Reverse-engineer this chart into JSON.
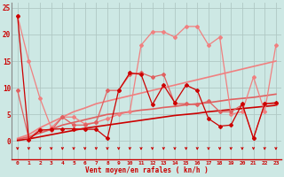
{
  "xlabel": "Vent moyen/en rafales ( kn/h )",
  "background_color": "#cde8e4",
  "grid_color": "#b0c8c4",
  "x": [
    0,
    1,
    2,
    3,
    4,
    5,
    6,
    7,
    8,
    9,
    10,
    11,
    12,
    13,
    14,
    15,
    16,
    17,
    18,
    19,
    20,
    21,
    22,
    23
  ],
  "lines": [
    {
      "name": "light_pink_jagged",
      "y": [
        23.5,
        15.0,
        8.0,
        2.5,
        4.5,
        4.5,
        3.2,
        3.5,
        4.2,
        5.0,
        5.5,
        18.0,
        20.5,
        20.5,
        19.5,
        21.5,
        21.5,
        18.0,
        19.5,
        5.0,
        5.5,
        12.0,
        5.5,
        18.0
      ],
      "color": "#f08080",
      "lw": 0.9,
      "marker": "D",
      "ms": 2.0,
      "zorder": 3
    },
    {
      "name": "mid_pink_jagged",
      "y": [
        9.5,
        0.5,
        2.2,
        2.0,
        4.5,
        3.0,
        3.0,
        3.5,
        9.5,
        9.5,
        12.5,
        12.8,
        12.0,
        12.5,
        7.0,
        7.0,
        6.8,
        7.5,
        5.5,
        5.5,
        6.8,
        0.5,
        7.0,
        7.0
      ],
      "color": "#e06060",
      "lw": 0.9,
      "marker": "D",
      "ms": 2.0,
      "zorder": 4
    },
    {
      "name": "dark_red_jagged",
      "y": [
        23.5,
        0.3,
        2.0,
        2.2,
        2.3,
        2.3,
        2.2,
        2.2,
        0.5,
        9.5,
        12.8,
        12.5,
        6.8,
        10.5,
        7.2,
        10.5,
        9.5,
        4.2,
        2.8,
        3.0,
        7.0,
        0.5,
        7.0,
        7.2
      ],
      "color": "#cc0000",
      "lw": 0.9,
      "marker": "D",
      "ms": 2.0,
      "zorder": 5
    },
    {
      "name": "trend_light_pink",
      "y": [
        0.5,
        1.2,
        2.5,
        3.5,
        4.5,
        5.5,
        6.2,
        7.0,
        7.5,
        8.0,
        8.5,
        9.0,
        9.5,
        10.0,
        10.5,
        11.0,
        11.5,
        12.0,
        12.5,
        13.0,
        13.5,
        14.0,
        14.5,
        15.0
      ],
      "color": "#f08080",
      "lw": 1.2,
      "marker": null,
      "ms": 0,
      "zorder": 2
    },
    {
      "name": "trend_mid_pink",
      "y": [
        0.3,
        0.8,
        1.5,
        2.2,
        3.0,
        3.5,
        4.0,
        4.5,
        5.0,
        5.2,
        5.5,
        5.8,
        6.0,
        6.3,
        6.5,
        6.8,
        7.0,
        7.2,
        7.5,
        7.8,
        8.0,
        8.2,
        8.5,
        8.8
      ],
      "color": "#e06060",
      "lw": 1.2,
      "marker": null,
      "ms": 0,
      "zorder": 2
    },
    {
      "name": "trend_dark_red",
      "y": [
        0.1,
        0.4,
        0.8,
        1.2,
        1.6,
        2.0,
        2.4,
        2.7,
        3.0,
        3.3,
        3.6,
        3.9,
        4.2,
        4.5,
        4.8,
        5.0,
        5.2,
        5.5,
        5.7,
        5.9,
        6.1,
        6.3,
        6.5,
        6.7
      ],
      "color": "#cc0000",
      "lw": 1.2,
      "marker": null,
      "ms": 0,
      "zorder": 2
    }
  ],
  "ylim": [
    -3.5,
    26
  ],
  "yticks": [
    0,
    5,
    10,
    15,
    20,
    25
  ],
  "xlim": [
    -0.5,
    23.5
  ]
}
